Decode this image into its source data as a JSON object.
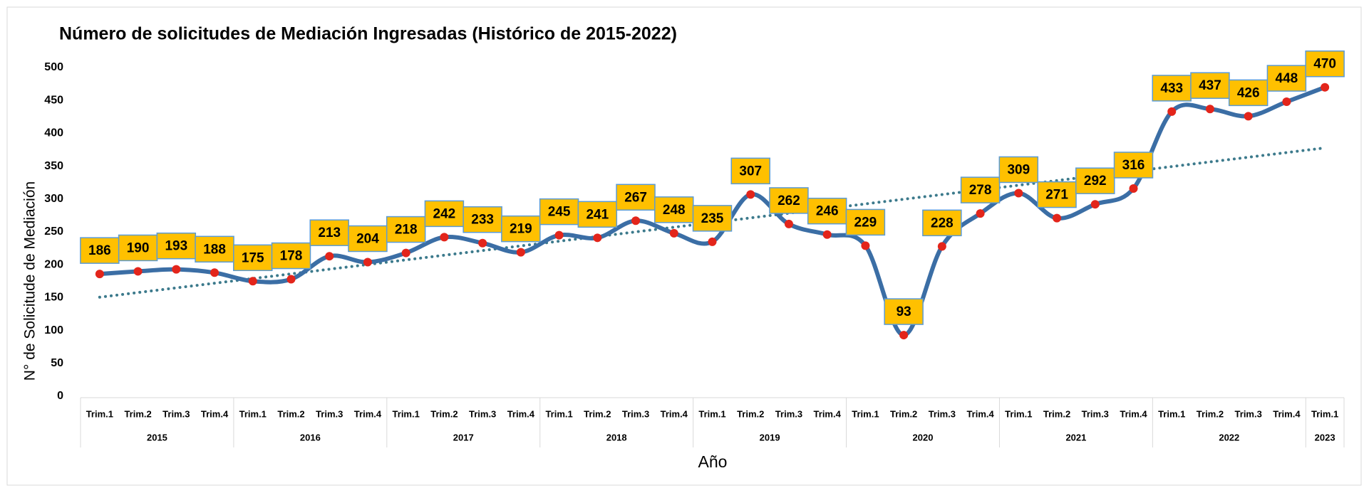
{
  "chart_data": {
    "type": "line",
    "title": "Número de solicitudes de Mediación Ingresadas  (Histórico de 2015-2022)",
    "x_label": "Año",
    "y_label": "N° de Solicitude de Mediación",
    "groups": [
      {
        "label": "2015",
        "categories": [
          "Trim.1",
          "Trim.2",
          "Trim.3",
          "Trim.4"
        ]
      },
      {
        "label": "2016",
        "categories": [
          "Trim.1",
          "Trim.2",
          "Trim.3",
          "Trim.4"
        ]
      },
      {
        "label": "2017",
        "categories": [
          "Trim.1",
          "Trim.2",
          "Trim.3",
          "Trim.4"
        ]
      },
      {
        "label": "2018",
        "categories": [
          "Trim.1",
          "Trim.2",
          "Trim.3",
          "Trim.4"
        ]
      },
      {
        "label": "2019",
        "categories": [
          "Trim.1",
          "Trim.2",
          "Trim.3",
          "Trim.4"
        ]
      },
      {
        "label": "2020",
        "categories": [
          "Trim.1",
          "Trim.2",
          "Trim.3",
          "Trim.4"
        ]
      },
      {
        "label": "2021",
        "categories": [
          "Trim.1",
          "Trim.2",
          "Trim.3",
          "Trim.4"
        ]
      },
      {
        "label": "2022",
        "categories": [
          "Trim.1",
          "Trim.2",
          "Trim.3",
          "Trim.4"
        ]
      },
      {
        "label": "2023",
        "categories": [
          "Trim.1"
        ]
      }
    ],
    "values": [
      186,
      190,
      193,
      188,
      175,
      178,
      213,
      204,
      218,
      242,
      233,
      219,
      245,
      241,
      267,
      248,
      235,
      307,
      262,
      246,
      229,
      93,
      228,
      278,
      309,
      271,
      292,
      316,
      433,
      437,
      426,
      448,
      470
    ],
    "line_color": "#3b6ea5",
    "marker_color": "#e3251b",
    "label_box_color": "#ffc000",
    "label_box_border": "#5b9bd5",
    "smooth": true,
    "trendline": {
      "type": "linear",
      "color": "#3c7a8c"
    },
    "ylim": [
      0,
      500
    ],
    "yticks": [
      0,
      50,
      100,
      150,
      200,
      250,
      300,
      350,
      400,
      450,
      500
    ],
    "grid": false
  }
}
